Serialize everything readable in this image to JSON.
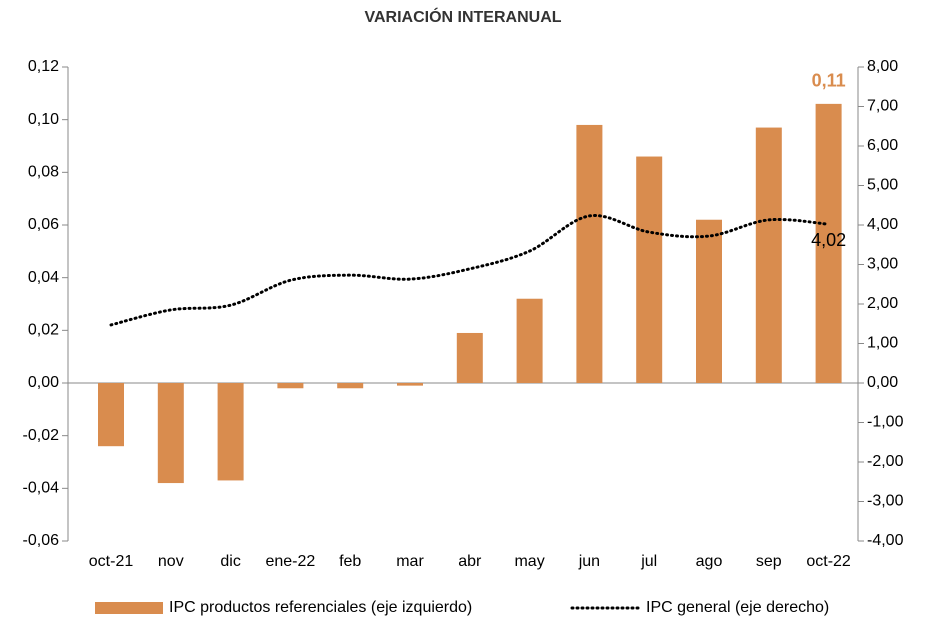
{
  "chart_data": {
    "type": "bar_line",
    "title": "VARIACIÓN INTERANUAL",
    "categories": [
      "oct-21",
      "nov",
      "dic",
      "ene-22",
      "feb",
      "mar",
      "abr",
      "may",
      "jun",
      "jul",
      "ago",
      "sep",
      "oct-22"
    ],
    "series": [
      {
        "name": "IPC productos referenciales (eje izquierdo)",
        "type": "bar",
        "color": "#d98c4e",
        "values": [
          -0.024,
          -0.038,
          -0.037,
          -0.002,
          -0.002,
          -0.001,
          0.019,
          0.032,
          0.098,
          0.086,
          0.062,
          0.097,
          0.106
        ],
        "value_labels": [
          null,
          null,
          null,
          null,
          null,
          null,
          null,
          null,
          null,
          null,
          null,
          null,
          "0,11"
        ]
      },
      {
        "name": "IPC general (eje derecho)",
        "type": "line",
        "axis": "y2",
        "color": "#000000",
        "values": [
          1.47,
          1.85,
          1.97,
          2.6,
          2.73,
          2.63,
          2.89,
          3.34,
          4.23,
          3.82,
          3.72,
          4.13,
          4.02
        ],
        "value_labels": [
          null,
          null,
          null,
          null,
          null,
          null,
          null,
          null,
          null,
          null,
          null,
          null,
          "4,02"
        ]
      }
    ],
    "ylim": [
      -0.06,
      0.12
    ],
    "yticks": [
      {
        "value": -0.06,
        "label": "-0,06"
      },
      {
        "value": -0.04,
        "label": "-0,04"
      },
      {
        "value": -0.02,
        "label": "-0,02"
      },
      {
        "value": 0,
        "label": "0,00"
      },
      {
        "value": 0.02,
        "label": "0,02"
      },
      {
        "value": 0.04,
        "label": "0,04"
      },
      {
        "value": 0.06,
        "label": "0,06"
      },
      {
        "value": 0.08,
        "label": "0,08"
      },
      {
        "value": 0.1,
        "label": "0,10"
      },
      {
        "value": 0.12,
        "label": "0,12"
      }
    ],
    "y2lim": [
      -4,
      8
    ],
    "y2ticks": [
      {
        "value": -4,
        "label": "-4,00"
      },
      {
        "value": -3,
        "label": "-3,00"
      },
      {
        "value": -2,
        "label": "-2,00"
      },
      {
        "value": -1,
        "label": "-1,00"
      },
      {
        "value": 0,
        "label": "0,00"
      },
      {
        "value": 1,
        "label": "1,00"
      },
      {
        "value": 2,
        "label": "2,00"
      },
      {
        "value": 3,
        "label": "3,00"
      },
      {
        "value": 4,
        "label": "4,00"
      },
      {
        "value": 5,
        "label": "5,00"
      },
      {
        "value": 6,
        "label": "6,00"
      },
      {
        "value": 7,
        "label": "7,00"
      },
      {
        "value": 8,
        "label": "8,00"
      }
    ],
    "legend": "bottom"
  }
}
